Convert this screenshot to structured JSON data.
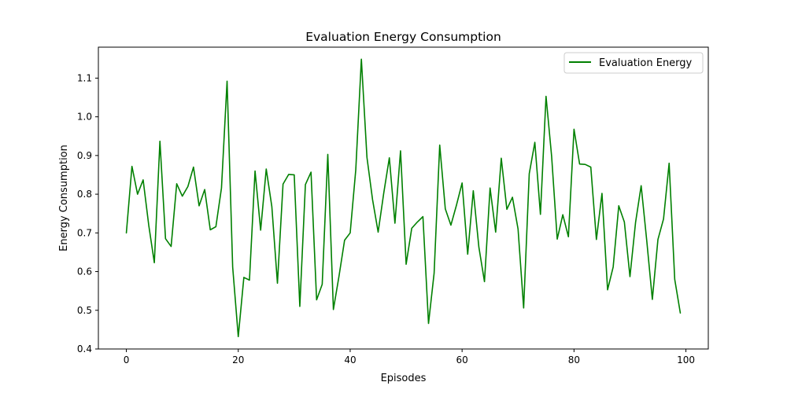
{
  "chart_data": {
    "type": "line",
    "title": "Evaluation Energy Consumption",
    "xlabel": "Episodes",
    "ylabel": "Energy Consumption",
    "xlim": [
      -5,
      104
    ],
    "ylim": [
      0.4,
      1.18
    ],
    "xticks": [
      0,
      20,
      40,
      60,
      80,
      100
    ],
    "yticks": [
      0.4,
      0.5,
      0.6,
      0.7,
      0.8,
      0.9,
      1.0,
      1.1
    ],
    "grid": false,
    "legend_position": "top-right",
    "series": [
      {
        "name": "Evaluation Energy",
        "color": "#008000",
        "x": [
          0,
          1,
          2,
          3,
          4,
          5,
          6,
          7,
          8,
          9,
          10,
          11,
          12,
          13,
          14,
          15,
          16,
          17,
          18,
          19,
          20,
          21,
          22,
          23,
          24,
          25,
          26,
          27,
          28,
          29,
          30,
          31,
          32,
          33,
          34,
          35,
          36,
          37,
          38,
          39,
          40,
          41,
          42,
          43,
          44,
          45,
          46,
          47,
          48,
          49,
          50,
          51,
          52,
          53,
          54,
          55,
          56,
          57,
          58,
          59,
          60,
          61,
          62,
          63,
          64,
          65,
          66,
          67,
          68,
          69,
          70,
          71,
          72,
          73,
          74,
          75,
          76,
          77,
          78,
          79,
          80,
          81,
          82,
          83,
          84,
          85,
          86,
          87,
          88,
          89,
          90,
          91,
          92,
          93,
          94,
          95,
          96,
          97,
          98,
          99
        ],
        "values": [
          0.7,
          0.872,
          0.8,
          0.837,
          0.72,
          0.623,
          0.937,
          0.685,
          0.665,
          0.827,
          0.795,
          0.82,
          0.87,
          0.77,
          0.812,
          0.708,
          0.716,
          0.816,
          1.092,
          0.612,
          0.432,
          0.585,
          0.578,
          0.86,
          0.707,
          0.865,
          0.768,
          0.57,
          0.826,
          0.851,
          0.85,
          0.51,
          0.825,
          0.857,
          0.527,
          0.567,
          0.903,
          0.502,
          0.588,
          0.681,
          0.7,
          0.863,
          1.149,
          0.895,
          0.786,
          0.702,
          0.803,
          0.894,
          0.725,
          0.912,
          0.619,
          0.712,
          0.728,
          0.742,
          0.466,
          0.596,
          0.927,
          0.762,
          0.72,
          0.772,
          0.829,
          0.645,
          0.809,
          0.663,
          0.574,
          0.816,
          0.702,
          0.893,
          0.761,
          0.792,
          0.71,
          0.506,
          0.853,
          0.934,
          0.748,
          1.053,
          0.898,
          0.684,
          0.747,
          0.69,
          0.968,
          0.878,
          0.877,
          0.87,
          0.683,
          0.802,
          0.553,
          0.612,
          0.77,
          0.728,
          0.587,
          0.727,
          0.822,
          0.68,
          0.528,
          0.683,
          0.736,
          0.88,
          0.58,
          0.493
        ]
      }
    ]
  }
}
